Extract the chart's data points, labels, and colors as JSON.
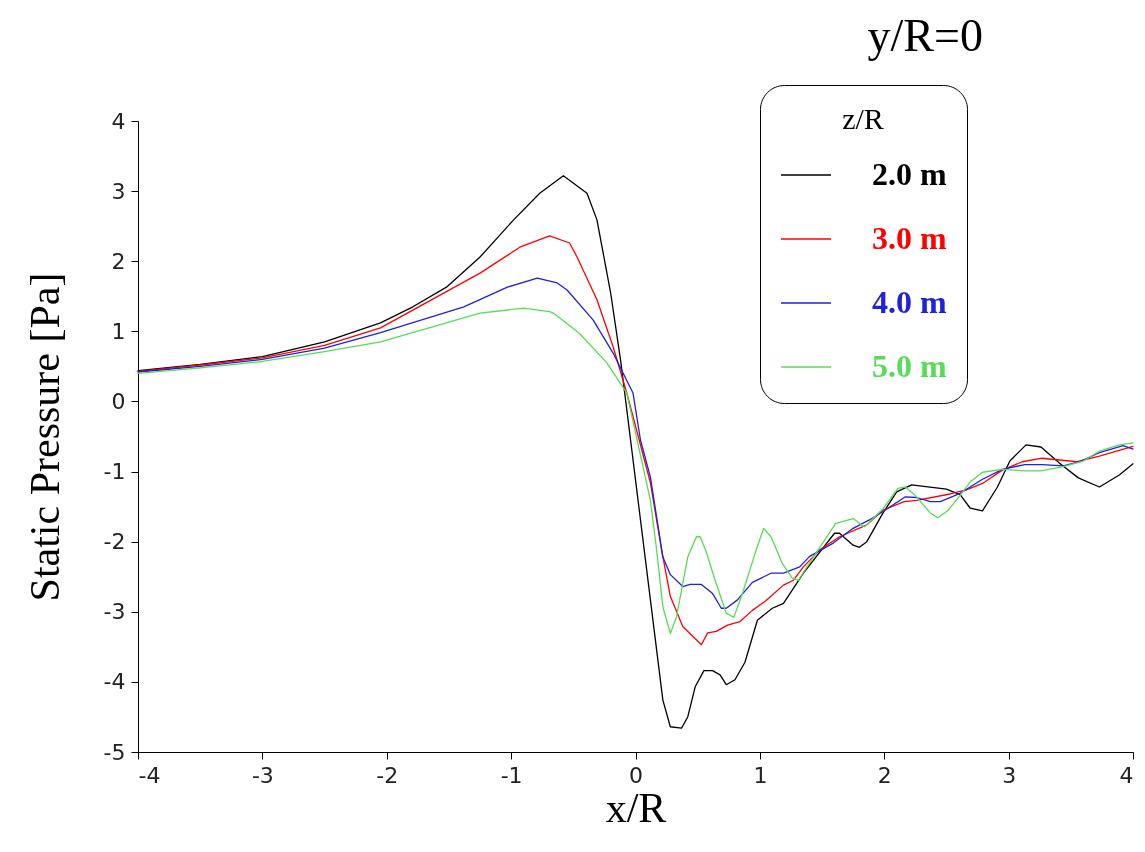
{
  "chart_data": {
    "type": "line",
    "title": "y/R=0",
    "xlabel": "x/R",
    "ylabel": "Static Pressure [Pa]",
    "legend_title": "z/R",
    "legend": "top right",
    "grid": false,
    "line_style": "solid",
    "xlim": [
      -4,
      4
    ],
    "xticks": [
      -4,
      -3,
      -2,
      -1,
      0,
      1,
      2,
      3,
      4
    ],
    "ylim": [
      -5,
      4
    ],
    "yticks": [
      -5,
      -4,
      -3,
      -2,
      -1,
      0,
      1,
      2,
      3,
      4
    ],
    "series": [
      {
        "name": "2.0 m",
        "color": "#000000",
        "x": [
          -4,
          -3.5,
          -3,
          -2.5,
          -2.05,
          -1.79,
          -1.52,
          -1.25,
          -0.98,
          -0.77,
          -0.58,
          -0.39,
          -0.31,
          -0.2,
          -0.12,
          -0.06,
          0.22,
          0.28,
          0.37,
          0.42,
          0.48,
          0.55,
          0.62,
          0.68,
          0.73,
          0.8,
          0.88,
          0.98,
          1.1,
          1.19,
          1.35,
          1.6,
          1.64,
          1.75,
          1.8,
          1.86,
          1.99,
          2.1,
          2.22,
          2.5,
          2.61,
          2.69,
          2.79,
          2.91,
          3.01,
          3.14,
          3.26,
          3.41,
          3.56,
          3.73,
          3.89,
          4.0
        ],
        "values": [
          0.44,
          0.53,
          0.64,
          0.85,
          1.12,
          1.35,
          1.63,
          2.06,
          2.59,
          2.97,
          3.22,
          2.97,
          2.59,
          1.55,
          0.59,
          -0.26,
          -4.26,
          -4.64,
          -4.66,
          -4.5,
          -4.07,
          -3.84,
          -3.84,
          -3.9,
          -4.04,
          -3.97,
          -3.72,
          -3.12,
          -2.95,
          -2.88,
          -2.45,
          -1.88,
          -1.88,
          -2.05,
          -2.08,
          -2.0,
          -1.59,
          -1.29,
          -1.19,
          -1.25,
          -1.33,
          -1.52,
          -1.56,
          -1.22,
          -0.85,
          -0.62,
          -0.65,
          -0.88,
          -1.09,
          -1.22,
          -1.05,
          -0.89
        ]
      },
      {
        "name": "3.0 m",
        "color": "#ff0000",
        "x": [
          -4,
          -3.5,
          -3,
          -2.5,
          -2.05,
          -1.25,
          -0.93,
          -0.69,
          -0.53,
          -0.47,
          -0.31,
          -0.18,
          -0.07,
          0.12,
          0.21,
          0.28,
          0.38,
          0.53,
          0.58,
          0.65,
          0.74,
          0.84,
          0.94,
          1.05,
          1.19,
          1.27,
          1.35,
          1.48,
          1.64,
          1.86,
          1.99,
          2.16,
          2.26,
          2.53,
          2.66,
          2.79,
          2.95,
          3.11,
          3.27,
          3.55,
          3.73,
          4.0
        ],
        "values": [
          0.43,
          0.52,
          0.62,
          0.8,
          1.05,
          1.83,
          2.2,
          2.36,
          2.26,
          2.06,
          1.45,
          0.78,
          0.12,
          -1.16,
          -2.12,
          -2.78,
          -3.21,
          -3.47,
          -3.3,
          -3.28,
          -3.19,
          -3.14,
          -2.98,
          -2.84,
          -2.62,
          -2.55,
          -2.36,
          -2.12,
          -1.93,
          -1.76,
          -1.55,
          -1.43,
          -1.41,
          -1.32,
          -1.26,
          -1.17,
          -0.98,
          -0.86,
          -0.81,
          -0.86,
          -0.78,
          -0.64
        ]
      },
      {
        "name": "4.0 m",
        "color": "#2020dd",
        "x": [
          -4,
          -3.5,
          -3,
          -2.5,
          -2.05,
          -1.38,
          -1.03,
          -0.79,
          -0.63,
          -0.55,
          -0.34,
          -0.18,
          -0.02,
          0.04,
          0.12,
          0.22,
          0.28,
          0.38,
          0.44,
          0.53,
          0.62,
          0.69,
          0.73,
          0.82,
          0.94,
          1.09,
          1.19,
          1.32,
          1.4,
          1.59,
          1.75,
          1.88,
          1.99,
          2.17,
          2.26,
          2.37,
          2.45,
          2.61,
          2.79,
          2.95,
          3.13,
          3.27,
          3.44,
          3.57,
          3.73,
          3.92,
          4.0
        ],
        "values": [
          0.42,
          0.5,
          0.6,
          0.76,
          0.98,
          1.35,
          1.63,
          1.76,
          1.69,
          1.59,
          1.16,
          0.69,
          0.12,
          -0.55,
          -1.08,
          -2.22,
          -2.47,
          -2.64,
          -2.61,
          -2.61,
          -2.74,
          -2.95,
          -2.95,
          -2.83,
          -2.58,
          -2.45,
          -2.45,
          -2.36,
          -2.21,
          -2.02,
          -1.81,
          -1.69,
          -1.57,
          -1.36,
          -1.37,
          -1.43,
          -1.43,
          -1.31,
          -1.11,
          -0.97,
          -0.9,
          -0.9,
          -0.92,
          -0.86,
          -0.73,
          -0.63,
          -0.68
        ]
      },
      {
        "name": "5.0 m",
        "color": "#55dd55",
        "x": [
          -4,
          -3.5,
          -3,
          -2.5,
          -2.05,
          -1.25,
          -0.9,
          -0.69,
          -0.66,
          -0.45,
          -0.23,
          -0.07,
          0.12,
          0.17,
          0.22,
          0.28,
          0.33,
          0.42,
          0.49,
          0.52,
          0.57,
          0.64,
          0.73,
          0.79,
          0.86,
          0.97,
          1.03,
          1.09,
          1.18,
          1.26,
          1.31,
          1.43,
          1.61,
          1.75,
          1.84,
          1.99,
          2.11,
          2.17,
          2.25,
          2.37,
          2.43,
          2.51,
          2.61,
          2.69,
          2.79,
          2.95,
          3.13,
          3.26,
          3.44,
          3.6,
          3.73,
          3.89,
          4.0
        ],
        "values": [
          0.4,
          0.48,
          0.57,
          0.71,
          0.85,
          1.26,
          1.33,
          1.28,
          1.26,
          0.97,
          0.55,
          0.12,
          -1.41,
          -2.12,
          -2.93,
          -3.31,
          -3.07,
          -2.22,
          -1.93,
          -1.93,
          -2.15,
          -2.55,
          -3.02,
          -3.08,
          -2.74,
          -2.12,
          -1.81,
          -1.93,
          -2.31,
          -2.52,
          -2.55,
          -2.22,
          -1.74,
          -1.67,
          -1.79,
          -1.53,
          -1.24,
          -1.22,
          -1.34,
          -1.59,
          -1.66,
          -1.56,
          -1.34,
          -1.15,
          -1.01,
          -0.97,
          -0.99,
          -0.99,
          -0.93,
          -0.85,
          -0.71,
          -0.62,
          -0.59
        ]
      }
    ]
  }
}
